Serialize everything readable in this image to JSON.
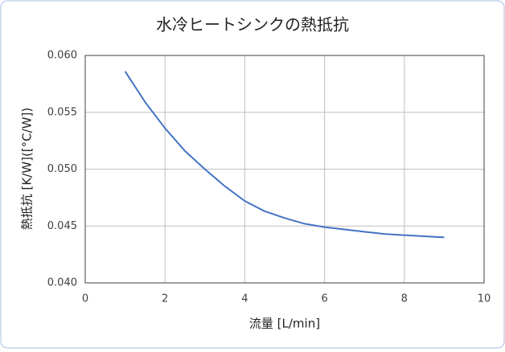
{
  "chart_data": {
    "type": "line",
    "title": "水冷ヒートシンクの熱抵抗",
    "x_label": "流量 [L/min]",
    "y_label": "熱抵抗 [K/W]([°C/W])",
    "x": [
      1,
      1.5,
      2,
      2.5,
      3,
      3.5,
      4,
      4.5,
      5,
      5.5,
      6,
      6.5,
      7,
      7.5,
      8,
      8.5,
      9
    ],
    "series": [
      {
        "name": "熱抵抗",
        "color": "#4472c4",
        "values": [
          0.0586,
          0.0559,
          0.0536,
          0.0516,
          0.05,
          0.0485,
          0.0472,
          0.0463,
          0.0457,
          0.0452,
          0.0449,
          0.0447,
          0.0445,
          0.0443,
          0.0442,
          0.0441,
          0.044
        ]
      }
    ],
    "xlim": [
      0,
      10
    ],
    "xticks": [
      0,
      2,
      4,
      6,
      8,
      10
    ],
    "ylim": [
      0.04,
      0.06
    ],
    "yticks": [
      {
        "value": 0.04,
        "label": "0.040"
      },
      0.045,
      {
        "value": 0.05,
        "label": "0.050"
      },
      0.055,
      {
        "value": 0.06,
        "label": "0.060"
      }
    ],
    "grid": true
  }
}
